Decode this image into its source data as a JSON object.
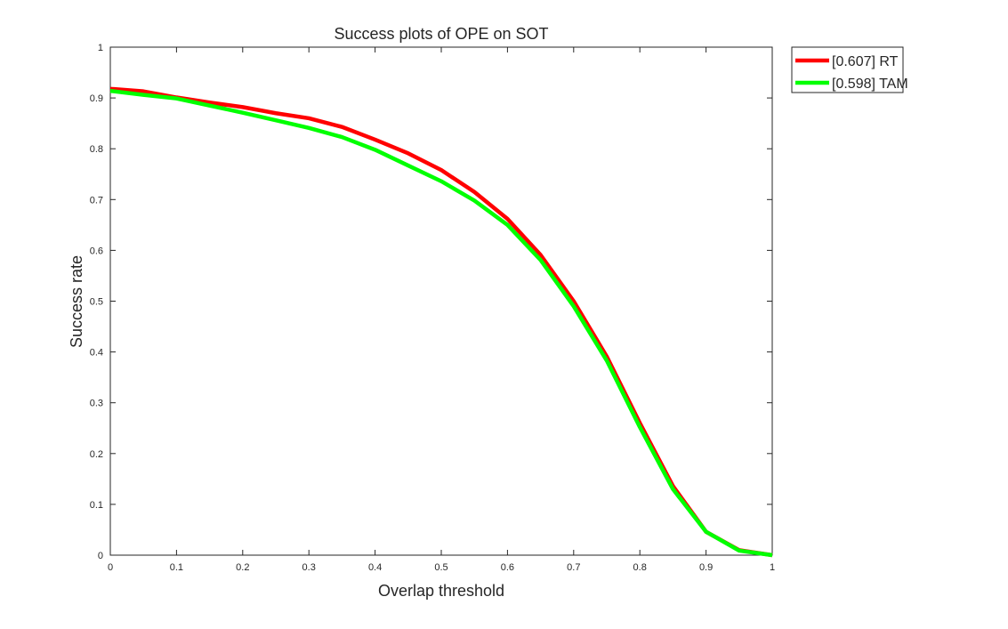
{
  "chart_data": {
    "type": "line",
    "title": "Success plots of OPE on SOT",
    "xlabel": "Overlap threshold",
    "ylabel": "Success rate",
    "xlim": [
      0,
      1
    ],
    "ylim": [
      0,
      1
    ],
    "xticks": [
      0,
      0.1,
      0.2,
      0.3,
      0.4,
      0.5,
      0.6,
      0.7,
      0.8,
      0.9,
      1
    ],
    "yticks": [
      0,
      0.1,
      0.2,
      0.3,
      0.4,
      0.5,
      0.6,
      0.7,
      0.8,
      0.9,
      1
    ],
    "xtick_labels": [
      "0",
      "0.1",
      "0.2",
      "0.3",
      "0.4",
      "0.5",
      "0.6",
      "0.7",
      "0.8",
      "0.9",
      "1"
    ],
    "ytick_labels": [
      "0",
      "0.1",
      "0.2",
      "0.3",
      "0.4",
      "0.5",
      "0.6",
      "0.7",
      "0.8",
      "0.9",
      "1"
    ],
    "grid": false,
    "legend_position": "outside-top-right",
    "x": [
      0,
      0.05,
      0.1,
      0.15,
      0.2,
      0.25,
      0.3,
      0.35,
      0.4,
      0.45,
      0.5,
      0.55,
      0.6,
      0.65,
      0.7,
      0.75,
      0.8,
      0.85,
      0.9,
      0.95,
      1
    ],
    "series": [
      {
        "name": "[0.607] RT",
        "color": "#ff0000",
        "values": [
          0.918,
          0.913,
          0.901,
          0.891,
          0.882,
          0.87,
          0.86,
          0.843,
          0.818,
          0.791,
          0.758,
          0.715,
          0.662,
          0.591,
          0.5,
          0.391,
          0.26,
          0.136,
          0.046,
          0.01,
          0.0
        ]
      },
      {
        "name": "[0.598] TAM",
        "color": "#00ff00",
        "values": [
          0.914,
          0.906,
          0.899,
          0.885,
          0.871,
          0.856,
          0.841,
          0.823,
          0.798,
          0.767,
          0.736,
          0.698,
          0.65,
          0.581,
          0.49,
          0.383,
          0.252,
          0.13,
          0.046,
          0.009,
          0.0
        ]
      }
    ]
  }
}
